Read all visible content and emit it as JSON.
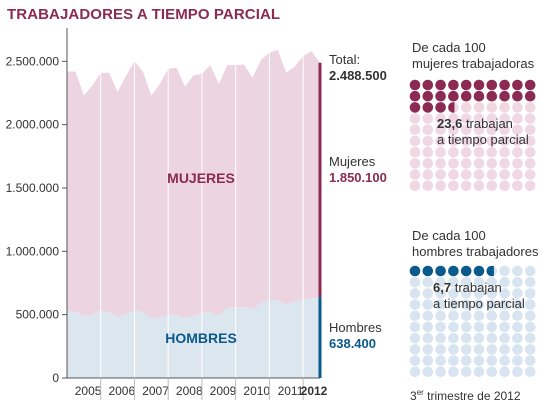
{
  "title": "TRABAJADORES A TIEMPO PARCIAL",
  "chart_data": {
    "type": "area",
    "stacked": true,
    "x": [
      2004.75,
      2005.0,
      2005.25,
      2005.5,
      2005.75,
      2006.0,
      2006.25,
      2006.5,
      2006.75,
      2007.0,
      2007.25,
      2007.5,
      2007.75,
      2008.0,
      2008.25,
      2008.5,
      2008.75,
      2009.0,
      2009.25,
      2009.5,
      2009.75,
      2010.0,
      2010.25,
      2010.5,
      2010.75,
      2011.0,
      2011.25,
      2011.5,
      2011.75,
      2012.0,
      2012.25
    ],
    "x_ticks": [
      "2005",
      "2006",
      "2007",
      "2008",
      "2009",
      "2010",
      "2011",
      "2012"
    ],
    "y_ticks": [
      0,
      500000,
      1000000,
      1500000,
      2000000,
      2500000
    ],
    "y_tick_labels": [
      "0",
      "500.000",
      "1.000.000",
      "1.500.000",
      "2.000.000",
      "2.500.000"
    ],
    "ylim": [
      0,
      2700000
    ],
    "series": [
      {
        "name": "HOMBRES",
        "color": "#dce6ef",
        "values": [
          530000,
          525000,
          490000,
          500000,
          530000,
          520000,
          480000,
          505000,
          530000,
          520000,
          470000,
          480000,
          500000,
          495000,
          470000,
          490000,
          510000,
          520000,
          490000,
          550000,
          560000,
          560000,
          540000,
          590000,
          620000,
          610000,
          580000,
          600000,
          620000,
          630000,
          638400
        ]
      },
      {
        "name": "MUJERES",
        "color": "#ecd5e0",
        "values": [
          1890000,
          1895000,
          1740000,
          1810000,
          1880000,
          1890000,
          1780000,
          1880000,
          1970000,
          1900000,
          1760000,
          1840000,
          1940000,
          1955000,
          1830000,
          1900000,
          1890000,
          1950000,
          1830000,
          1920000,
          1910000,
          1915000,
          1830000,
          1920000,
          1950000,
          1980000,
          1830000,
          1860000,
          1920000,
          1950000,
          1850100
        ]
      }
    ],
    "labels": {
      "total": "Total:",
      "total_value": "2.488.500",
      "women": "Mujeres",
      "women_value": "1.850.100",
      "men": "Hombres",
      "men_value": "638.400",
      "women_in_chart": "MUJERES",
      "men_in_chart": "HOMBRES"
    },
    "colors": {
      "women_dark": "#8b2a52",
      "men_dark": "#0a5a8c",
      "axis": "#555555"
    }
  },
  "women_panel": {
    "heading_line1": "De cada 100",
    "heading_line2": "mujeres trabajadoras",
    "pct_value": "23,6",
    "pct_line1_rest": "trabajan",
    "pct_line2": "a tiempo parcial",
    "filled": 23.6,
    "filled_color": "#8b2a52",
    "empty_color": "#f0d8e2"
  },
  "men_panel": {
    "heading_line1": "De cada 100",
    "heading_line2": "hombres trabajadores",
    "pct_value": "6,7",
    "pct_line1_rest": "trabajan",
    "pct_line2": "a tiempo parcial",
    "filled": 6.7,
    "filled_color": "#0a5a8c",
    "empty_color": "#d8e5f0"
  },
  "note_prefix": "3",
  "note_sup": "er",
  "note_rest": " trimestre de 2012"
}
